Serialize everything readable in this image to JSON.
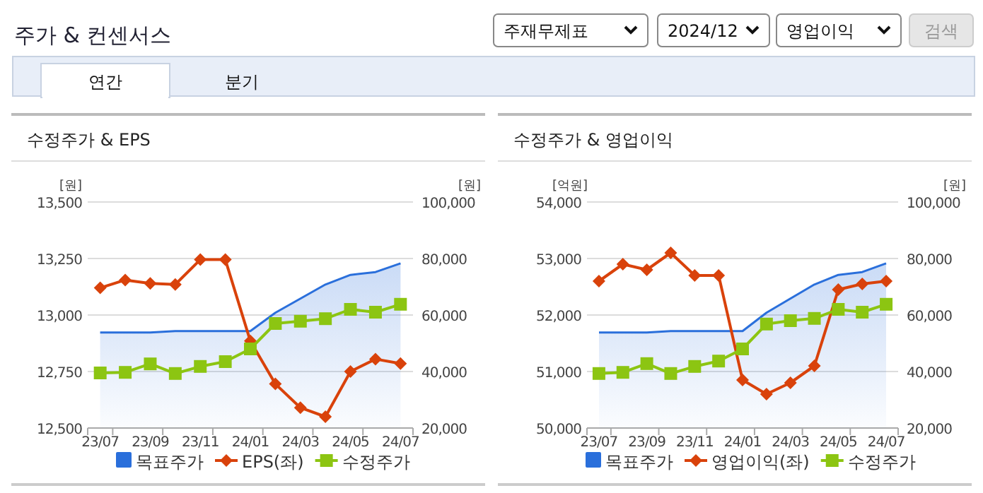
{
  "chart_data": [
    {
      "type": "other",
      "title": "주가 & 컨센서스",
      "annotations": [
        "주재무제표",
        "2024/12",
        "영업이익",
        "검색",
        "연간",
        "분기"
      ]
    },
    {
      "type": "line",
      "title": "수정주가 & EPS",
      "ylabel": "[원]",
      "y2label": "[원]",
      "categories": [
        "23/07",
        null,
        "23/09",
        null,
        "23/11",
        null,
        "24/01",
        null,
        "24/03",
        null,
        "24/05",
        null,
        "24/07"
      ],
      "series": [
        {
          "name": "목표주가",
          "type": "area",
          "axis": "y2",
          "color": "#2a6fdb",
          "marker": "none",
          "values": [
            53800,
            53800,
            53800,
            54300,
            54300,
            54300,
            54300,
            60800,
            65800,
            70800,
            74200,
            75200,
            78300
          ]
        },
        {
          "name": "EPS(좌)",
          "type": "line",
          "axis": "y",
          "color": "#d9420b",
          "marker": "diamond",
          "values": [
            13120,
            13155,
            13140,
            13135,
            13245,
            13245,
            12885,
            12695,
            12590,
            12550,
            12750,
            12805,
            12785
          ]
        },
        {
          "name": "수정주가",
          "type": "line",
          "axis": "y2",
          "color": "#8cc512",
          "marker": "square",
          "values": [
            39500,
            39700,
            42700,
            39300,
            41800,
            43500,
            48000,
            57000,
            57800,
            58700,
            62000,
            61000,
            63800
          ]
        }
      ],
      "ylim": [
        12500,
        13500
      ],
      "yticks": [
        {
          "value": 12500,
          "label": "12,500"
        },
        {
          "value": 12750,
          "label": "12,750"
        },
        {
          "value": 13000,
          "label": "13,000"
        },
        {
          "value": 13250,
          "label": "13,250"
        },
        {
          "value": 13500,
          "label": "13,500"
        }
      ],
      "y2lim": [
        20000,
        100000
      ],
      "y2ticks": [
        {
          "value": 20000,
          "label": "20,000"
        },
        {
          "value": 40000,
          "label": "40,000"
        },
        {
          "value": 60000,
          "label": "60,000"
        },
        {
          "value": 80000,
          "label": "80,000"
        },
        {
          "value": 100000,
          "label": "100,000"
        }
      ],
      "grid": "y",
      "legend": "bottom"
    },
    {
      "type": "line",
      "title": "수정주가 & 영업이익",
      "ylabel": "[억원]",
      "y2label": "[원]",
      "categories": [
        "23/07",
        null,
        "23/09",
        null,
        "23/11",
        null,
        "24/01",
        null,
        "24/03",
        null,
        "24/05",
        null,
        "24/07"
      ],
      "series": [
        {
          "name": "목표주가",
          "type": "area",
          "axis": "y2",
          "color": "#2a6fdb",
          "marker": "none",
          "values": [
            53800,
            53800,
            53800,
            54300,
            54300,
            54300,
            54300,
            60800,
            65800,
            70800,
            74200,
            75200,
            78300
          ]
        },
        {
          "name": "영업이익(좌)",
          "type": "line",
          "axis": "y",
          "color": "#d9420b",
          "marker": "diamond",
          "values": [
            52600,
            52900,
            52800,
            53100,
            52700,
            52700,
            50850,
            50600,
            50800,
            51100,
            52450,
            52550,
            52600
          ]
        },
        {
          "name": "수정주가",
          "type": "line",
          "axis": "y2",
          "color": "#8cc512",
          "marker": "square",
          "values": [
            39300,
            39700,
            42800,
            39300,
            41800,
            43700,
            48000,
            56800,
            58000,
            58800,
            62000,
            61000,
            63800
          ]
        }
      ],
      "ylim": [
        50000,
        54000
      ],
      "yticks": [
        {
          "value": 50000,
          "label": "50,000"
        },
        {
          "value": 51000,
          "label": "51,000"
        },
        {
          "value": 52000,
          "label": "52,000"
        },
        {
          "value": 53000,
          "label": "53,000"
        },
        {
          "value": 54000,
          "label": "54,000"
        }
      ],
      "y2lim": [
        20000,
        100000
      ],
      "y2ticks": [
        {
          "value": 20000,
          "label": "20,000"
        },
        {
          "value": 40000,
          "label": "40,000"
        },
        {
          "value": 60000,
          "label": "60,000"
        },
        {
          "value": 80000,
          "label": "80,000"
        },
        {
          "value": 100000,
          "label": "100,000"
        }
      ],
      "grid": "y",
      "legend": "bottom"
    }
  ]
}
